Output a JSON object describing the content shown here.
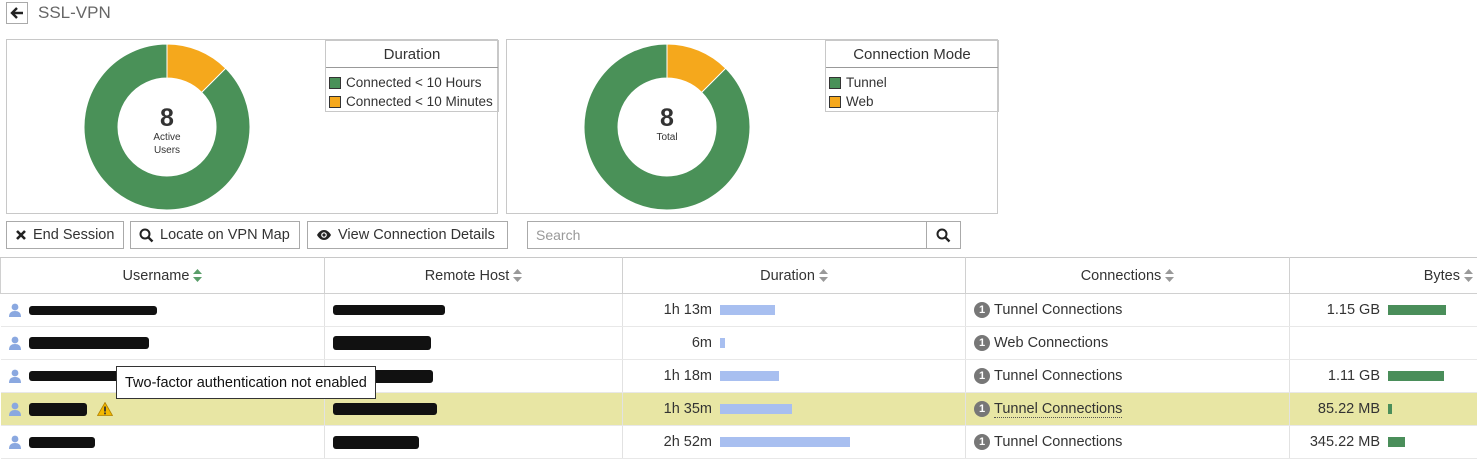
{
  "page": {
    "title": "SSL-VPN"
  },
  "colors": {
    "green": "#4a9158",
    "orange": "#f5a81c",
    "bar_blue": "#a8bff0",
    "bar_green": "#4a8e5a",
    "highlight": "#e8e6a4"
  },
  "duration_chart": {
    "center_value": "8",
    "center_label_line1": "Active",
    "center_label_line2": "Users",
    "legend_title": "Duration",
    "legend": [
      {
        "label": "Connected < 10 Hours",
        "color": "#4a9158"
      },
      {
        "label": "Connected < 10 Minutes",
        "color": "#f5a81c"
      }
    ],
    "slices": [
      {
        "label": "Connected < 10 Hours",
        "value": 7,
        "color": "#4a9158"
      },
      {
        "label": "Connected < 10 Minutes",
        "value": 1,
        "color": "#f5a81c"
      }
    ]
  },
  "mode_chart": {
    "center_value": "8",
    "center_label": "Total",
    "legend_title": "Connection Mode",
    "legend": [
      {
        "label": "Tunnel",
        "color": "#4a9158"
      },
      {
        "label": "Web",
        "color": "#f5a81c"
      }
    ],
    "slices": [
      {
        "label": "Tunnel",
        "value": 7,
        "color": "#4a9158"
      },
      {
        "label": "Web",
        "value": 1,
        "color": "#f5a81c"
      }
    ]
  },
  "toolbar": {
    "end_session": "End Session",
    "locate_map": "Locate on VPN Map",
    "view_details": "View Connection Details",
    "search_placeholder": "Search"
  },
  "table": {
    "columns": [
      "Username",
      "Remote Host",
      "Duration",
      "Connections",
      "Bytes"
    ],
    "rows": [
      {
        "duration": "1h 13m",
        "duration_minutes": 73,
        "conn_count": "1",
        "connections": "Tunnel Connections",
        "bytes": "1.15 GB",
        "bytes_mb": 1177.6,
        "highlight": false,
        "warning": false
      },
      {
        "duration": "6m",
        "duration_minutes": 6,
        "conn_count": "1",
        "connections": "Web Connections",
        "bytes": "",
        "bytes_mb": 0,
        "highlight": false,
        "warning": false
      },
      {
        "duration": "1h 18m",
        "duration_minutes": 78,
        "conn_count": "1",
        "connections": "Tunnel Connections",
        "bytes": "1.11 GB",
        "bytes_mb": 1136.6,
        "highlight": false,
        "warning": false
      },
      {
        "duration": "1h 35m",
        "duration_minutes": 95,
        "conn_count": "1",
        "connections": "Tunnel Connections",
        "bytes": "85.22 MB",
        "bytes_mb": 85.22,
        "highlight": true,
        "warning": true
      },
      {
        "duration": "2h 52m",
        "duration_minutes": 172,
        "conn_count": "1",
        "connections": "Tunnel Connections",
        "bytes": "345.22 MB",
        "bytes_mb": 345.22,
        "highlight": false,
        "warning": false
      }
    ]
  },
  "tooltip": {
    "text": "Two-factor authentication not enabled"
  }
}
